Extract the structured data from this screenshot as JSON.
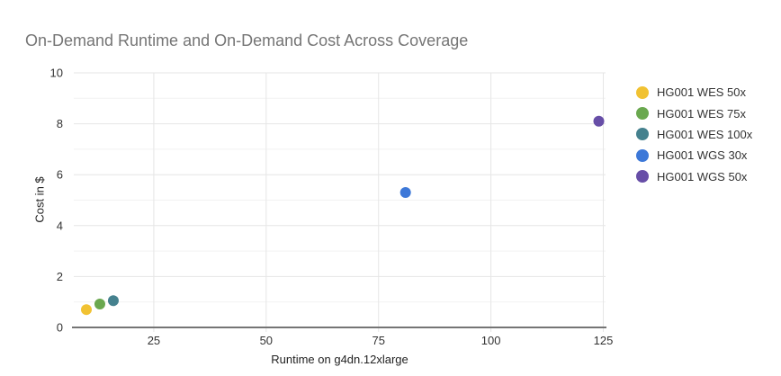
{
  "title": "On-Demand Runtime and On-Demand Cost Across Coverage",
  "chart_data": {
    "type": "scatter",
    "title": "On-Demand Runtime and On-Demand Cost Across Coverage",
    "xlabel": "Runtime on g4dn.12xlarge",
    "ylabel": "Cost in $",
    "xlim": [
      7.2,
      125.5
    ],
    "ylim": [
      0,
      10
    ],
    "x_ticks": [
      25,
      50,
      75,
      100,
      125
    ],
    "y_ticks": [
      0,
      2,
      4,
      6,
      8,
      10
    ],
    "y_minor_ticks": [
      1,
      3,
      5,
      7,
      9
    ],
    "grid": true,
    "legend_position": "right",
    "series": [
      {
        "name": "HG001 WES 50x",
        "color": "#F1C232",
        "points": [
          {
            "x": 10,
            "y": 0.7
          }
        ]
      },
      {
        "name": "HG001 WES 75x",
        "color": "#6AA84F",
        "points": [
          {
            "x": 13,
            "y": 0.92
          }
        ]
      },
      {
        "name": "HG001 WES 100x",
        "color": "#45818E",
        "points": [
          {
            "x": 16,
            "y": 1.05
          }
        ]
      },
      {
        "name": "HG001 WGS 30x",
        "color": "#3D78D8",
        "points": [
          {
            "x": 81,
            "y": 5.3
          }
        ]
      },
      {
        "name": "HG001 WGS 50x",
        "color": "#674EA7",
        "points": [
          {
            "x": 124,
            "y": 8.1
          }
        ]
      }
    ]
  },
  "style_colors": {
    "title_text": "#757575",
    "tick_text": "#333333",
    "major_grid": "#e6e6e6",
    "minor_grid": "#f2f2f2",
    "baseline": "#757575",
    "background": "#ffffff"
  }
}
